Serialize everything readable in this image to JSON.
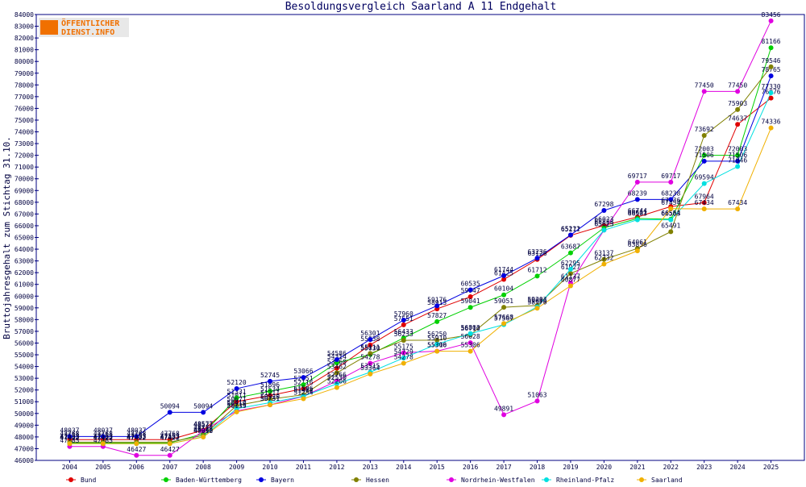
{
  "chart_data": {
    "type": "line",
    "title": "Besoldungsvergleich Saarland A 11 Endgehalt",
    "y_label": "Bruttojahresgehalt zum Stichtag 31.10.",
    "logo": [
      "ÖFFENTLICHER",
      "DIENST.INFO"
    ],
    "categories": [
      "2004",
      "2005",
      "2006",
      "2007",
      "2008",
      "2009",
      "2010",
      "2011",
      "2012",
      "2013",
      "2014",
      "2015",
      "2016",
      "2017",
      "2018",
      "2019",
      "2020",
      "2021",
      "2022",
      "2023",
      "2024",
      "2025"
    ],
    "series": [
      {
        "name": "Bund",
        "color": "#e00000",
        "values": [
          47768,
          47768,
          47768,
          47768,
          48577,
          51011,
          51534,
          52116,
          53860,
          55838,
          57551,
          58913,
          59947,
          61425,
          63126,
          65177,
          66023,
          66744,
          67636,
          67964,
          74637,
          76876
        ]
      },
      {
        "name": "Baden-Württemberg",
        "color": "#00d000",
        "values": [
          47483,
          47483,
          47483,
          47483,
          48272,
          51331,
          51896,
          52451,
          54314,
          55030,
          56433,
          57827,
          59041,
          60104,
          61712,
          63687,
          65823,
          66611,
          66554,
          72003,
          72003,
          81166
        ]
      },
      {
        "name": "Bayern",
        "color": "#0000e0",
        "values": [
          48037,
          48037,
          48037,
          50094,
          50094,
          52120,
          52745,
          53066,
          54586,
          56301,
          57960,
          59176,
          60535,
          61744,
          63236,
          65211,
          67298,
          68239,
          68238,
          71506,
          71506,
          78765
        ]
      },
      {
        "name": "Hessen",
        "color": "#808000",
        "values": [
          47553,
          47553,
          47553,
          47553,
          48126,
          50671,
          51211,
          51596,
          53462,
          55111,
          56233,
          56250,
          56710,
          59051,
          59203,
          61927,
          63137,
          64061,
          65491,
          73692,
          75903,
          79546
        ]
      },
      {
        "name": "Nordrhein-Westfalen",
        "color": "#e000e0",
        "values": [
          47183,
          47183,
          46427,
          46427,
          48522,
          50216,
          50731,
          51464,
          52766,
          54278,
          55175,
          55310,
          56028,
          49891,
          51063,
          61137,
          65625,
          69717,
          69717,
          77450,
          77450,
          83456
        ]
      },
      {
        "name": "Rheinland-Pfalz",
        "color": "#00e0e0",
        "values": [
          47422,
          47422,
          47422,
          47422,
          48012,
          50410,
          50920,
          51472,
          52530,
          53515,
          54729,
          55910,
          56803,
          57567,
          59086,
          62295,
          65623,
          66503,
          66503,
          69594,
          71046,
          77330
        ]
      },
      {
        "name": "Saarland",
        "color": "#f0b000",
        "values": [
          47422,
          47422,
          47422,
          47422,
          47990,
          50133,
          50731,
          51254,
          52206,
          53364,
          54278,
          55306,
          55306,
          57668,
          58970,
          60877,
          62732,
          63856,
          67454,
          67434,
          67434,
          74336
        ]
      }
    ],
    "ylim": [
      46000,
      84000
    ],
    "yticks": [
      46000,
      47000,
      48000,
      49000,
      50000,
      51000,
      52000,
      53000,
      54000,
      55000,
      56000,
      57000,
      58000,
      59000,
      60000,
      61000,
      62000,
      63000,
      64000,
      65000,
      66000,
      67000,
      68000,
      69000,
      70000,
      71000,
      72000,
      73000,
      74000,
      75000,
      76000,
      77000,
      78000,
      79000,
      80000,
      81000,
      82000,
      83000,
      84000
    ],
    "grid": false
  }
}
